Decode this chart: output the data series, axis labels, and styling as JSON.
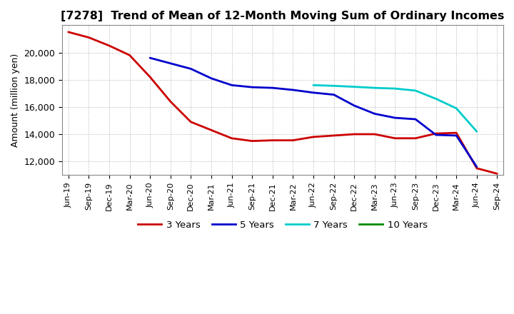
{
  "title": "[7278]  Trend of Mean of 12-Month Moving Sum of Ordinary Incomes",
  "ylabel": "Amount (million yen)",
  "ylim": [
    11000,
    22000
  ],
  "yticks": [
    12000,
    14000,
    16000,
    18000,
    20000
  ],
  "background_color": "#ffffff",
  "grid_color": "#b0b0b0",
  "title_fontsize": 11.5,
  "legend_labels": [
    "3 Years",
    "5 Years",
    "7 Years",
    "10 Years"
  ],
  "legend_colors": [
    "#cc0000",
    "#0000cc",
    "#00cccc",
    "#008800"
  ],
  "x_labels": [
    "Jun-19",
    "Sep-19",
    "Dec-19",
    "Mar-20",
    "Jun-20",
    "Sep-20",
    "Dec-20",
    "Mar-21",
    "Jun-21",
    "Sep-21",
    "Dec-21",
    "Mar-22",
    "Jun-22",
    "Sep-22",
    "Dec-22",
    "Mar-23",
    "Jun-23",
    "Sep-23",
    "Dec-23",
    "Mar-24",
    "Jun-24",
    "Sep-24"
  ],
  "series_3y": [
    21500,
    21100,
    20500,
    19800,
    18200,
    16400,
    14900,
    14300,
    13700,
    13500,
    13550,
    13550,
    13800,
    13900,
    14000,
    14000,
    13700,
    13700,
    14050,
    14100,
    11500,
    11100
  ],
  "series_5y": [
    null,
    null,
    null,
    null,
    19600,
    19200,
    18800,
    18100,
    17600,
    17450,
    17400,
    17250,
    17050,
    16900,
    16100,
    15500,
    15200,
    15100,
    13950,
    13900,
    11600,
    null
  ],
  "series_7y": [
    null,
    null,
    null,
    null,
    null,
    null,
    null,
    null,
    null,
    null,
    null,
    null,
    17600,
    17550,
    17480,
    17400,
    17350,
    17200,
    16600,
    15900,
    14200,
    null
  ],
  "series_10y": [
    null,
    null,
    null,
    null,
    null,
    null,
    null,
    null,
    null,
    null,
    null,
    null,
    null,
    null,
    null,
    null,
    null,
    null,
    null,
    null,
    null,
    null
  ]
}
